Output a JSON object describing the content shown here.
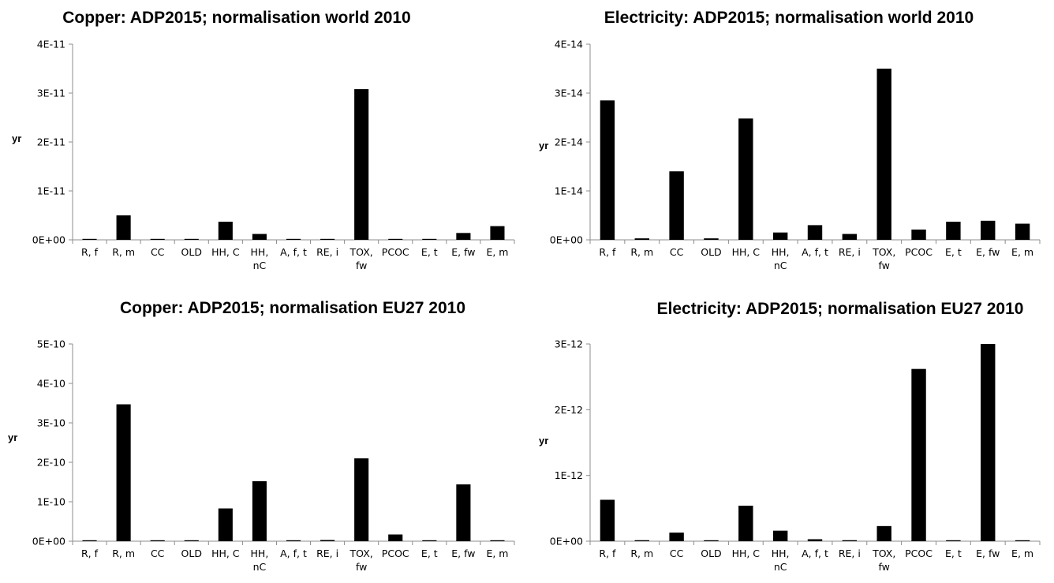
{
  "chart_data": [
    {
      "type": "bar",
      "title": "Copper: ADP2015; normalisation world 2010",
      "ylabel": "yr",
      "xlabel": "",
      "categories": [
        [
          "R, f"
        ],
        [
          "R, m"
        ],
        [
          "CC"
        ],
        [
          "OLD"
        ],
        [
          "HH, C"
        ],
        [
          "HH,",
          "nC"
        ],
        [
          "A, f, t"
        ],
        [
          "RE, i"
        ],
        [
          "TOX,",
          "fw"
        ],
        [
          "PCOC"
        ],
        [
          "E, t"
        ],
        [
          "E, fw"
        ],
        [
          "E, m"
        ]
      ],
      "values": [
        1e-13,
        5e-12,
        1e-13,
        1e-13,
        3.7e-12,
        1.2e-12,
        1e-13,
        1e-13,
        3.08e-11,
        1e-13,
        1e-13,
        1.4e-12,
        2.8e-12
      ],
      "ylim": [
        0,
        4e-11
      ],
      "yticks": [
        "0E+00",
        "1E-11",
        "2E-11",
        "3E-11",
        "4E-11"
      ],
      "ytick_values": [
        0,
        1e-11,
        2e-11,
        3e-11,
        4e-11
      ],
      "grid": false,
      "legend": "none",
      "bar_color": "#000000"
    },
    {
      "type": "bar",
      "title": "Electricity: ADP2015; normalisation world 2010",
      "ylabel": "yr",
      "xlabel": "",
      "categories": [
        [
          "R, f"
        ],
        [
          "R, m"
        ],
        [
          "CC"
        ],
        [
          "OLD"
        ],
        [
          "HH, C"
        ],
        [
          "HH,",
          "nC"
        ],
        [
          "A, f, t"
        ],
        [
          "RE, i"
        ],
        [
          "TOX,",
          "fw"
        ],
        [
          "PCOC"
        ],
        [
          "E, t"
        ],
        [
          "E, fw"
        ],
        [
          "E, m"
        ]
      ],
      "values": [
        2.85e-14,
        3e-16,
        1.4e-14,
        3e-16,
        2.48e-14,
        1.5e-15,
        3e-15,
        1.2e-15,
        3.5e-14,
        2.1e-15,
        3.7e-15,
        3.9e-15,
        3.3e-15
      ],
      "ylim": [
        0,
        4e-14
      ],
      "yticks": [
        "0E+00",
        "1E-14",
        "2E-14",
        "3E-14",
        "4E-14"
      ],
      "ytick_values": [
        0,
        1e-14,
        2e-14,
        3e-14,
        4e-14
      ],
      "grid": false,
      "legend": "none",
      "bar_color": "#000000"
    },
    {
      "type": "bar",
      "title": "Copper: ADP2015; normalisation EU27 2010",
      "ylabel": "yr",
      "xlabel": "",
      "categories": [
        [
          "R, f"
        ],
        [
          "R, m"
        ],
        [
          "CC"
        ],
        [
          "OLD"
        ],
        [
          "HH, C"
        ],
        [
          "HH,",
          "nC"
        ],
        [
          "A, f, t"
        ],
        [
          "RE, i"
        ],
        [
          "TOX,",
          "fw"
        ],
        [
          "PCOC"
        ],
        [
          "E, t"
        ],
        [
          "E, fw"
        ],
        [
          "E, m"
        ]
      ],
      "values": [
        1e-12,
        3.47e-10,
        1e-12,
        1e-12,
        8.3e-11,
        1.52e-10,
        1e-12,
        3e-12,
        2.1e-10,
        1.7e-11,
        1e-12,
        1.44e-10,
        1e-12
      ],
      "ylim": [
        0,
        5e-10
      ],
      "yticks": [
        "0E+00",
        "1E-10",
        "2E-10",
        "3E-10",
        "4E-10",
        "5E-10"
      ],
      "ytick_values": [
        0,
        1e-10,
        2e-10,
        3e-10,
        4e-10,
        5e-10
      ],
      "grid": false,
      "legend": "none",
      "bar_color": "#000000"
    },
    {
      "type": "bar",
      "title": "Electricity: ADP2015; normalisation EU27 2010",
      "ylabel": "yr",
      "xlabel": "",
      "categories": [
        [
          "R, f"
        ],
        [
          "R, m"
        ],
        [
          "CC"
        ],
        [
          "OLD"
        ],
        [
          "HH, C"
        ],
        [
          "HH,",
          "nC"
        ],
        [
          "A, f, t"
        ],
        [
          "RE, i"
        ],
        [
          "TOX,",
          "fw"
        ],
        [
          "PCOC"
        ],
        [
          "E, t"
        ],
        [
          "E, fw"
        ],
        [
          "E, m"
        ]
      ],
      "values": [
        6.3e-13,
        1.5e-14,
        1.3e-13,
        1e-14,
        5.4e-13,
        1.6e-13,
        3e-14,
        1.5e-14,
        2.3e-13,
        2.62e-12,
        1e-14,
        3e-12,
        1e-14
      ],
      "ylim": [
        0,
        3e-12
      ],
      "yticks": [
        "0E+00",
        "1E-12",
        "2E-12",
        "3E-12"
      ],
      "ytick_values": [
        0,
        1e-12,
        2e-12,
        3e-12
      ],
      "grid": false,
      "legend": "none",
      "bar_color": "#000000"
    }
  ]
}
